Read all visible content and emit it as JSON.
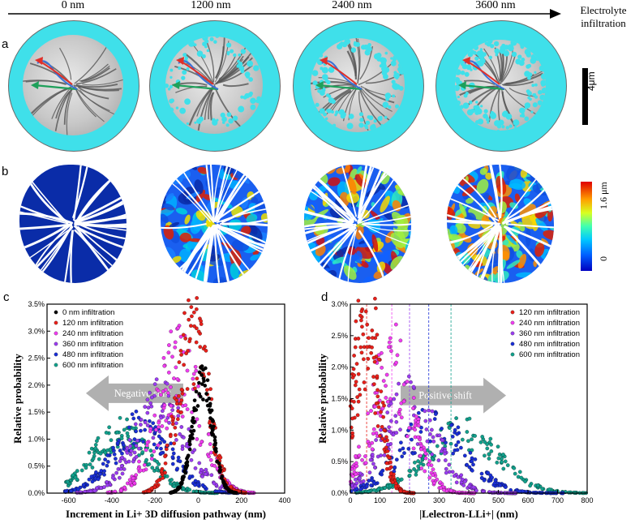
{
  "top": {
    "arrow_labels": [
      "0 nm",
      "1200 nm",
      "2400 nm",
      "3600 nm"
    ],
    "end_label_line1": "Electrolyte",
    "end_label_line2": "infiltration"
  },
  "panel_a": {
    "letter": "a",
    "scale_bar_label": "4μm"
  },
  "panel_b": {
    "letter": "b",
    "colorbar_max": "1.6 μm",
    "colorbar_min": "0"
  },
  "panel_c": {
    "letter": "c"
  },
  "panel_d": {
    "letter": "d"
  },
  "chart_data": [
    {
      "type": "scatter",
      "panel": "c",
      "xlabel": "Increment in Li+ 3D diffusion pathway (nm)",
      "ylabel": "Relative probability",
      "xlim": [
        -700,
        400
      ],
      "ylim": [
        0,
        3.5
      ],
      "xticks": [
        "-600",
        "-400",
        "-200",
        "0",
        "200",
        "400"
      ],
      "yticks": [
        "0.0%",
        "0.5%",
        "1.0%",
        "1.5%",
        "2.0%",
        "2.5%",
        "3.0%",
        "3.5%"
      ],
      "annotation": "Negative shift",
      "series": [
        {
          "name": "0 nm infiltration",
          "color": "#000000",
          "peak_x": 20,
          "peak_y": 2.05,
          "width": 45,
          "spread": 0.18
        },
        {
          "name": "120 nm infiltration",
          "color": "#e8201a",
          "peak_x": -25,
          "peak_y": 2.9,
          "width": 70,
          "spread": 0.35
        },
        {
          "name": "240 nm infiltration",
          "color": "#f03cf0",
          "peak_x": -90,
          "peak_y": 2.3,
          "width": 100,
          "spread": 0.4
        },
        {
          "name": "360 nm infiltration",
          "color": "#9a3cf0",
          "peak_x": -170,
          "peak_y": 1.6,
          "width": 120,
          "spread": 0.35
        },
        {
          "name": "480 nm infiltration",
          "color": "#1a2fd6",
          "peak_x": -260,
          "peak_y": 1.2,
          "width": 130,
          "spread": 0.3
        },
        {
          "name": "600 nm infiltration",
          "color": "#12a08c",
          "peak_x": -360,
          "peak_y": 1.1,
          "width": 130,
          "spread": 0.3
        }
      ]
    },
    {
      "type": "scatter",
      "panel": "d",
      "xlabel": "|Lelectron-LLi+| (nm)",
      "ylabel": "Relative probability",
      "xlim": [
        0,
        800
      ],
      "ylim": [
        0,
        3.0
      ],
      "xticks": [
        "0",
        "100",
        "200",
        "300",
        "400",
        "500",
        "600",
        "700",
        "800"
      ],
      "yticks": [
        "0.0%",
        "0.5%",
        "1.0%",
        "1.5%",
        "2.0%",
        "2.5%",
        "3.0%"
      ],
      "annotation": "Positive shift",
      "series": [
        {
          "name": "120 nm infiltration",
          "color": "#e8201a",
          "peak_x": 55,
          "peak_y": 2.9,
          "width": 40,
          "spread": 0.45,
          "mean_line": 55
        },
        {
          "name": "240 nm infiltration",
          "color": "#f03cf0",
          "peak_x": 140,
          "peak_y": 1.9,
          "width": 70,
          "spread": 0.45,
          "mean_line": 140
        },
        {
          "name": "360 nm infiltration",
          "color": "#9a3cf0",
          "peak_x": 200,
          "peak_y": 1.35,
          "width": 90,
          "spread": 0.4,
          "mean_line": 200
        },
        {
          "name": "480 nm infiltration",
          "color": "#1a2fd6",
          "peak_x": 280,
          "peak_y": 1.05,
          "width": 110,
          "spread": 0.35,
          "mean_line": 265
        },
        {
          "name": "600 nm infiltration",
          "color": "#12a08c",
          "peak_x": 380,
          "peak_y": 0.95,
          "width": 120,
          "spread": 0.3,
          "mean_line": 340
        }
      ]
    }
  ]
}
